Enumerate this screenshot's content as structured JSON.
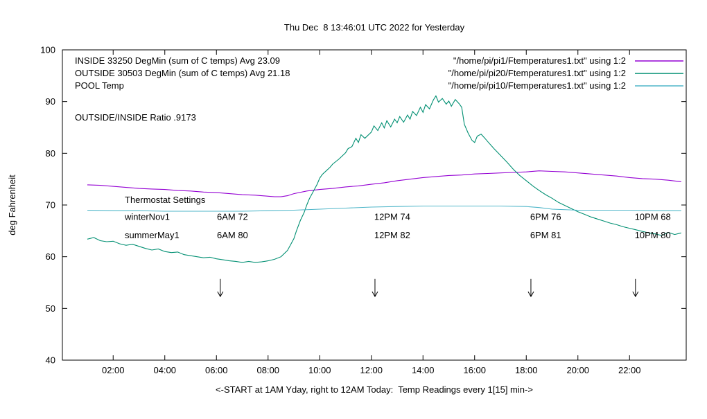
{
  "chart_data": {
    "type": "line",
    "title": "Thu Dec  8 13:46:01 UTC 2022 for Yesterday",
    "xlabel": "<-START at 1AM Yday, right to 12AM Today:  Temp Readings every 1[15] min->",
    "ylabel": "deg Fahrenheit",
    "xlim": [
      1,
      24
    ],
    "ylim": [
      40,
      100
    ],
    "grid": false,
    "legend_position": "top-inside",
    "x_ticks": [
      {
        "h": 2,
        "label": "02:00"
      },
      {
        "h": 4,
        "label": "04:00"
      },
      {
        "h": 6,
        "label": "06:00"
      },
      {
        "h": 8,
        "label": "08:00"
      },
      {
        "h": 10,
        "label": "10:00"
      },
      {
        "h": 12,
        "label": "12:00"
      },
      {
        "h": 14,
        "label": "14:00"
      },
      {
        "h": 16,
        "label": "16:00"
      },
      {
        "h": 18,
        "label": "18:00"
      },
      {
        "h": 20,
        "label": "20:00"
      },
      {
        "h": 22,
        "label": "22:00"
      }
    ],
    "y_ticks": [
      40,
      50,
      60,
      70,
      80,
      90,
      100
    ],
    "series": [
      {
        "name": "INSIDE",
        "legend_label": "INSIDE 33250 DegMin (sum of C temps) Avg 23.09",
        "file_label": "\"/home/pi/pi1/Ftemperatures1.txt\" using 1:2",
        "color": "#9400d3",
        "points": [
          [
            1,
            73.9
          ],
          [
            1.5,
            73.8
          ],
          [
            2,
            73.6
          ],
          [
            2.5,
            73.4
          ],
          [
            3,
            73.2
          ],
          [
            3.5,
            73.1
          ],
          [
            4,
            73.0
          ],
          [
            4.5,
            72.8
          ],
          [
            5,
            72.7
          ],
          [
            5.5,
            72.5
          ],
          [
            6,
            72.4
          ],
          [
            6.5,
            72.2
          ],
          [
            7,
            72.0
          ],
          [
            7.5,
            71.9
          ],
          [
            8,
            71.7
          ],
          [
            8.25,
            71.6
          ],
          [
            8.5,
            71.6
          ],
          [
            8.75,
            71.8
          ],
          [
            9,
            72.2
          ],
          [
            9.5,
            72.7
          ],
          [
            10,
            73.0
          ],
          [
            10.5,
            73.2
          ],
          [
            11,
            73.5
          ],
          [
            11.5,
            73.7
          ],
          [
            12,
            74.0
          ],
          [
            12.5,
            74.3
          ],
          [
            13,
            74.7
          ],
          [
            13.5,
            75.0
          ],
          [
            14,
            75.3
          ],
          [
            14.5,
            75.5
          ],
          [
            15,
            75.7
          ],
          [
            15.5,
            75.8
          ],
          [
            16,
            76.0
          ],
          [
            16.5,
            76.1
          ],
          [
            17,
            76.2
          ],
          [
            17.5,
            76.3
          ],
          [
            18,
            76.4
          ],
          [
            18.5,
            76.6
          ],
          [
            19,
            76.5
          ],
          [
            19.5,
            76.4
          ],
          [
            20,
            76.2
          ],
          [
            20.5,
            76.0
          ],
          [
            21,
            75.8
          ],
          [
            21.5,
            75.6
          ],
          [
            22,
            75.3
          ],
          [
            22.5,
            75.1
          ],
          [
            23,
            75.0
          ],
          [
            23.5,
            74.8
          ],
          [
            24,
            74.5
          ]
        ]
      },
      {
        "name": "OUTSIDE",
        "legend_label": "OUTSIDE 30503 DegMin (sum of C temps) Avg 21.18",
        "file_label": "\"/home/pi/pi20/Ftemperatures1.txt\" using 1:2",
        "color": "#008f72",
        "points": [
          [
            1,
            63.4
          ],
          [
            1.25,
            63.7
          ],
          [
            1.5,
            63.1
          ],
          [
            1.75,
            62.9
          ],
          [
            2,
            63.0
          ],
          [
            2.25,
            62.5
          ],
          [
            2.5,
            62.2
          ],
          [
            2.75,
            62.4
          ],
          [
            3,
            62.0
          ],
          [
            3.25,
            61.6
          ],
          [
            3.5,
            61.3
          ],
          [
            3.75,
            61.5
          ],
          [
            4,
            61.0
          ],
          [
            4.25,
            60.8
          ],
          [
            4.5,
            60.9
          ],
          [
            4.75,
            60.4
          ],
          [
            5,
            60.2
          ],
          [
            5.25,
            60.0
          ],
          [
            5.5,
            59.8
          ],
          [
            5.75,
            59.9
          ],
          [
            6,
            59.6
          ],
          [
            6.25,
            59.4
          ],
          [
            6.5,
            59.2
          ],
          [
            6.75,
            59.1
          ],
          [
            7,
            58.9
          ],
          [
            7.25,
            59.1
          ],
          [
            7.5,
            58.9
          ],
          [
            7.75,
            59.0
          ],
          [
            8,
            59.2
          ],
          [
            8.25,
            59.5
          ],
          [
            8.5,
            60.0
          ],
          [
            8.75,
            61.2
          ],
          [
            9,
            63.5
          ],
          [
            9.1,
            65.0
          ],
          [
            9.25,
            67.0
          ],
          [
            9.4,
            68.6
          ],
          [
            9.5,
            70.0
          ],
          [
            9.6,
            71.2
          ],
          [
            9.75,
            72.6
          ],
          [
            9.9,
            74.0
          ],
          [
            10,
            75.2
          ],
          [
            10.1,
            75.9
          ],
          [
            10.25,
            76.6
          ],
          [
            10.4,
            77.3
          ],
          [
            10.5,
            77.9
          ],
          [
            10.75,
            78.9
          ],
          [
            11,
            80.1
          ],
          [
            11.1,
            80.9
          ],
          [
            11.25,
            81.3
          ],
          [
            11.4,
            82.9
          ],
          [
            11.5,
            82.1
          ],
          [
            11.6,
            83.6
          ],
          [
            11.75,
            82.9
          ],
          [
            12,
            84.1
          ],
          [
            12.1,
            85.3
          ],
          [
            12.25,
            84.4
          ],
          [
            12.4,
            85.9
          ],
          [
            12.5,
            84.9
          ],
          [
            12.6,
            86.3
          ],
          [
            12.75,
            85.1
          ],
          [
            12.9,
            86.6
          ],
          [
            13,
            85.9
          ],
          [
            13.1,
            87.1
          ],
          [
            13.25,
            86.0
          ],
          [
            13.4,
            87.4
          ],
          [
            13.5,
            86.6
          ],
          [
            13.6,
            88.1
          ],
          [
            13.75,
            87.3
          ],
          [
            13.9,
            88.9
          ],
          [
            14,
            87.9
          ],
          [
            14.1,
            89.4
          ],
          [
            14.25,
            88.6
          ],
          [
            14.4,
            90.3
          ],
          [
            14.5,
            91.1
          ],
          [
            14.6,
            89.9
          ],
          [
            14.75,
            90.6
          ],
          [
            14.9,
            89.5
          ],
          [
            15,
            90.1
          ],
          [
            15.1,
            89.1
          ],
          [
            15.25,
            90.4
          ],
          [
            15.4,
            89.6
          ],
          [
            15.5,
            88.9
          ],
          [
            15.6,
            85.6
          ],
          [
            15.75,
            83.9
          ],
          [
            15.9,
            82.5
          ],
          [
            16,
            82.1
          ],
          [
            16.1,
            83.3
          ],
          [
            16.25,
            83.7
          ],
          [
            16.4,
            82.9
          ],
          [
            16.5,
            82.3
          ],
          [
            16.75,
            80.9
          ],
          [
            17,
            79.6
          ],
          [
            17.25,
            78.3
          ],
          [
            17.5,
            76.9
          ],
          [
            17.75,
            75.7
          ],
          [
            18,
            74.7
          ],
          [
            18.25,
            73.7
          ],
          [
            18.5,
            72.8
          ],
          [
            18.75,
            72.0
          ],
          [
            19,
            71.3
          ],
          [
            19.25,
            70.5
          ],
          [
            19.5,
            69.9
          ],
          [
            19.75,
            69.3
          ],
          [
            20,
            68.7
          ],
          [
            20.25,
            68.2
          ],
          [
            20.5,
            67.7
          ],
          [
            20.75,
            67.3
          ],
          [
            21,
            66.9
          ],
          [
            21.25,
            66.5
          ],
          [
            21.5,
            66.2
          ],
          [
            21.75,
            65.8
          ],
          [
            22,
            65.5
          ],
          [
            22.25,
            65.2
          ],
          [
            22.5,
            64.9
          ],
          [
            22.75,
            64.6
          ],
          [
            23,
            64.4
          ],
          [
            23.25,
            64.1
          ],
          [
            23.5,
            64.7
          ],
          [
            23.75,
            64.3
          ],
          [
            24,
            64.6
          ]
        ]
      },
      {
        "name": "POOL",
        "legend_label": "POOL Temp",
        "file_label": "\"/home/pi/pi10/Ftemperatures1.txt\" using 1:2",
        "color": "#4fb6c9",
        "points": [
          [
            1,
            69.0
          ],
          [
            2,
            68.9
          ],
          [
            3,
            68.9
          ],
          [
            4,
            68.8
          ],
          [
            5,
            68.8
          ],
          [
            6,
            68.8
          ],
          [
            7,
            68.8
          ],
          [
            8,
            68.9
          ],
          [
            9,
            69.0
          ],
          [
            10,
            69.2
          ],
          [
            11,
            69.4
          ],
          [
            12,
            69.6
          ],
          [
            13,
            69.7
          ],
          [
            14,
            69.8
          ],
          [
            15,
            69.8
          ],
          [
            16,
            69.8
          ],
          [
            17,
            69.8
          ],
          [
            18,
            69.7
          ],
          [
            18.5,
            69.5
          ],
          [
            19,
            69.2
          ],
          [
            20,
            69.0
          ],
          [
            21,
            69.0
          ],
          [
            22,
            69.0
          ],
          [
            23,
            68.9
          ],
          [
            24,
            68.9
          ]
        ]
      }
    ],
    "annotations": {
      "ratio_text": "OUTSIDE/INSIDE Ratio .9173",
      "thermostat": {
        "header": "Thermostat Settings",
        "header_pos": {
          "t": 2.45,
          "f": 70.4
        },
        "label_t": 2.45,
        "col_t": [
          6.02,
          12.11,
          18.15,
          22.2
        ],
        "rows": [
          {
            "label": "winterNov1",
            "f": 67.1,
            "values": [
              "6AM 72",
              "12PM 74",
              "6PM 76",
              "10PM 68"
            ]
          },
          {
            "label": "summerMay1",
            "f": 63.6,
            "values": [
              "6AM 80",
              "12PM 82",
              "6PM 81",
              "10PM 80"
            ]
          }
        ]
      },
      "arrows": {
        "hours": [
          6.15,
          12.14,
          18.18,
          22.23
        ],
        "f_top": 55.7,
        "f_bottom": 52.3
      }
    }
  }
}
